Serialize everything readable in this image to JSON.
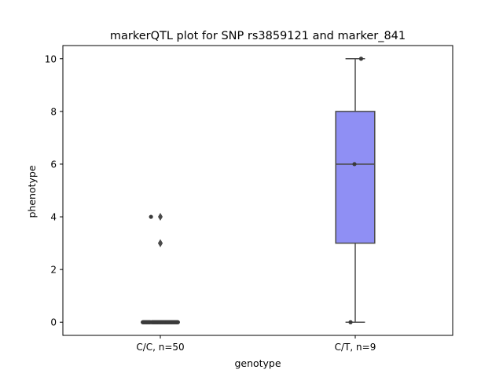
{
  "chart_data": {
    "type": "box",
    "title": "markerQTL plot for SNP rs3859121 and marker_841",
    "xlabel": "genotype",
    "ylabel": "phenotype",
    "ylim": [
      -0.5,
      10.5
    ],
    "yticks": [
      0,
      2,
      4,
      6,
      8,
      10
    ],
    "grid": false,
    "categories": [
      "C/C, n=50",
      "C/T, n=9"
    ],
    "colors": {
      "box_fill": "#8f8ff4",
      "box_line": "#4a4a4a",
      "points": "#3a3a3a"
    },
    "groups": [
      {
        "label": "C/C, n=50",
        "n": 50,
        "box": {
          "q1": 0,
          "median": 0,
          "q3": 0,
          "whisker_low": 0,
          "whisker_high": 0
        },
        "outliers": [
          3,
          3,
          4
        ],
        "strip_points": [
          0,
          0,
          0,
          0,
          0,
          0,
          0,
          0,
          0,
          0,
          0,
          0,
          0,
          0,
          0,
          0,
          0,
          0,
          0,
          0,
          0,
          0,
          0,
          0,
          0,
          0,
          0,
          0,
          0,
          0,
          0,
          0,
          0,
          0,
          0,
          0,
          0,
          0,
          0,
          0,
          0,
          0,
          0,
          0,
          0,
          0,
          0,
          4
        ]
      },
      {
        "label": "C/T, n=9",
        "n": 9,
        "box": {
          "q1": 3,
          "median": 6,
          "q3": 8,
          "whisker_low": 0,
          "whisker_high": 10
        },
        "outliers": [],
        "strip_points": [
          0,
          6,
          10
        ]
      }
    ]
  }
}
